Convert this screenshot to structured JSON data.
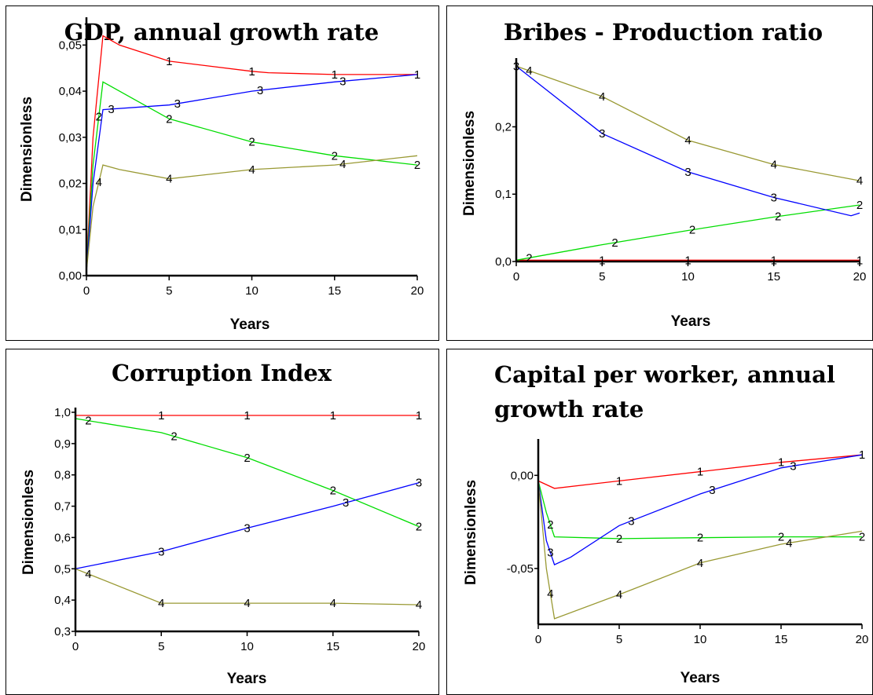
{
  "colors": {
    "1": "#ff0000",
    "2": "#00dd00",
    "3": "#0000ff",
    "4": "#999933"
  },
  "chart_data": [
    {
      "type": "line",
      "title_lines": [
        "GDP, annual growth rate"
      ],
      "xlabel": "Years",
      "ylabel": "Dimensionless",
      "xlim": [
        0,
        20
      ],
      "ylim": [
        0,
        0.055
      ],
      "xticks": [
        0,
        5,
        10,
        15,
        20
      ],
      "xtick_labels": [
        "0",
        "5",
        "10",
        "15",
        "20"
      ],
      "yticks": [
        0,
        0.01,
        0.02,
        0.03,
        0.04,
        0.05
      ],
      "ytick_labels": [
        "0,00",
        "0,01",
        "0,02",
        "0,03",
        "0,04",
        "0,05"
      ],
      "series": [
        {
          "name": "1",
          "x": [
            0,
            0.4,
            1,
            2,
            5,
            10,
            11,
            15,
            20
          ],
          "y": [
            0.001,
            0.03,
            0.052,
            0.05,
            0.0465,
            0.0443,
            0.044,
            0.0436,
            0.0436
          ],
          "markers": [
            5,
            10,
            15,
            20
          ]
        },
        {
          "name": "2",
          "x": [
            0,
            0.4,
            1,
            2,
            5,
            10,
            15,
            20
          ],
          "y": [
            0.001,
            0.024,
            0.042,
            0.04,
            0.034,
            0.029,
            0.026,
            0.024
          ],
          "markers": [
            0.75,
            5,
            10,
            15,
            20
          ]
        },
        {
          "name": "3",
          "x": [
            0,
            0.4,
            1,
            5,
            10,
            15,
            20
          ],
          "y": [
            0.001,
            0.02,
            0.036,
            0.037,
            0.04,
            0.042,
            0.0436
          ],
          "markers": [
            1.5,
            5.5,
            10.5,
            15.5
          ]
        },
        {
          "name": "4",
          "x": [
            0,
            0.4,
            1,
            2,
            5,
            10,
            15,
            20
          ],
          "y": [
            0.001,
            0.015,
            0.024,
            0.023,
            0.021,
            0.023,
            0.024,
            0.026
          ],
          "markers": [
            0.75,
            5,
            10,
            15.5
          ]
        }
      ]
    },
    {
      "type": "line",
      "title_lines": [
        "Bribes - Production ratio"
      ],
      "xlabel": "Years",
      "ylabel": "Dimensionless",
      "xlim": [
        0,
        20
      ],
      "ylim": [
        0,
        0.295
      ],
      "xticks": [
        0,
        5,
        10,
        15,
        20
      ],
      "xtick_labels": [
        "0",
        "5",
        "10",
        "15",
        "20"
      ],
      "yticks": [
        0,
        0.1,
        0.2
      ],
      "ytick_labels": [
        "0,0",
        "0,1",
        "0,2"
      ],
      "series": [
        {
          "name": "1",
          "x": [
            0,
            20
          ],
          "y": [
            0.002,
            0.002
          ],
          "markers": [
            5,
            10,
            15,
            20
          ]
        },
        {
          "name": "2",
          "x": [
            0,
            5,
            10,
            15,
            20
          ],
          "y": [
            0.002,
            0.025,
            0.046,
            0.066,
            0.084
          ],
          "markers": [
            0.75,
            5.75,
            10.25,
            15.25,
            20
          ]
        },
        {
          "name": "3",
          "x": [
            0,
            1.5,
            5,
            10,
            15,
            19.5,
            20
          ],
          "y": [
            0.29,
            0.26,
            0.19,
            0.133,
            0.095,
            0.068,
            0.072
          ],
          "markers": [
            0,
            5,
            10,
            15
          ]
        },
        {
          "name": "4",
          "x": [
            0,
            5,
            10,
            15,
            20
          ],
          "y": [
            0.29,
            0.245,
            0.18,
            0.144,
            0.12
          ],
          "markers": [
            0.75,
            5,
            10,
            15,
            20
          ]
        }
      ]
    },
    {
      "type": "line",
      "title_lines": [
        "Corruption Index"
      ],
      "xlabel": "Years",
      "ylabel": "Dimensionless",
      "xlim": [
        0,
        20
      ],
      "ylim": [
        0.3,
        1.0
      ],
      "xticks": [
        0,
        5,
        10,
        15,
        20
      ],
      "xtick_labels": [
        "0",
        "5",
        "10",
        "15",
        "20"
      ],
      "yticks": [
        0.3,
        0.4,
        0.5,
        0.6,
        0.7,
        0.8,
        0.9,
        1.0
      ],
      "ytick_labels": [
        "0,3",
        "0,4",
        "0,5",
        "0,6",
        "0,7",
        "0,8",
        "0,9",
        "1,0"
      ],
      "series": [
        {
          "name": "1",
          "x": [
            0,
            20
          ],
          "y": [
            0.99,
            0.99
          ],
          "markers": [
            5,
            10,
            15,
            20
          ]
        },
        {
          "name": "2",
          "x": [
            0,
            5,
            10,
            15,
            20
          ],
          "y": [
            0.98,
            0.935,
            0.855,
            0.75,
            0.635
          ],
          "markers": [
            0.75,
            5.75,
            10,
            15,
            20
          ]
        },
        {
          "name": "3",
          "x": [
            0,
            5,
            10,
            15,
            20
          ],
          "y": [
            0.5,
            0.555,
            0.63,
            0.7,
            0.775
          ],
          "markers": [
            5,
            10,
            15.75,
            20
          ]
        },
        {
          "name": "4",
          "x": [
            0,
            5,
            10,
            15,
            20
          ],
          "y": [
            0.5,
            0.39,
            0.39,
            0.39,
            0.385
          ],
          "markers": [
            0.75,
            5,
            10,
            15,
            20
          ]
        }
      ]
    },
    {
      "type": "line",
      "title_lines": [
        "Capital per worker, annual",
        "growth rate"
      ],
      "xlabel": "Years",
      "ylabel": "Dimensionless",
      "xlim": [
        0,
        20
      ],
      "ylim": [
        -0.08,
        0.017
      ],
      "xticks": [
        0,
        5,
        10,
        15,
        20
      ],
      "xtick_labels": [
        "0",
        "5",
        "10",
        "15",
        "20"
      ],
      "yticks": [
        0,
        -0.05
      ],
      "ytick_labels": [
        "0,00",
        "-0,05"
      ],
      "series": [
        {
          "name": "1",
          "x": [
            0,
            1,
            5,
            10,
            15,
            20
          ],
          "y": [
            -0.003,
            -0.007,
            -0.003,
            0.002,
            0.007,
            0.011
          ],
          "markers": [
            5,
            10,
            15,
            20
          ]
        },
        {
          "name": "2",
          "x": [
            0,
            0.5,
            1,
            5,
            10,
            15,
            20
          ],
          "y": [
            -0.003,
            -0.02,
            -0.033,
            -0.034,
            -0.0335,
            -0.033,
            -0.033
          ],
          "markers": [
            0.75,
            5,
            10,
            15,
            20
          ]
        },
        {
          "name": "3",
          "x": [
            0,
            0.5,
            1,
            2,
            5,
            10,
            15,
            20
          ],
          "y": [
            -0.003,
            -0.035,
            -0.048,
            -0.044,
            -0.027,
            -0.01,
            0.004,
            0.011
          ],
          "markers": [
            0.75,
            5.75,
            10.75,
            15.75
          ]
        },
        {
          "name": "4",
          "x": [
            0,
            0.5,
            1,
            5,
            10,
            15,
            20
          ],
          "y": [
            -0.003,
            -0.05,
            -0.077,
            -0.064,
            -0.047,
            -0.037,
            -0.03
          ],
          "markers": [
            0.75,
            5,
            10,
            15.5
          ]
        }
      ]
    }
  ]
}
